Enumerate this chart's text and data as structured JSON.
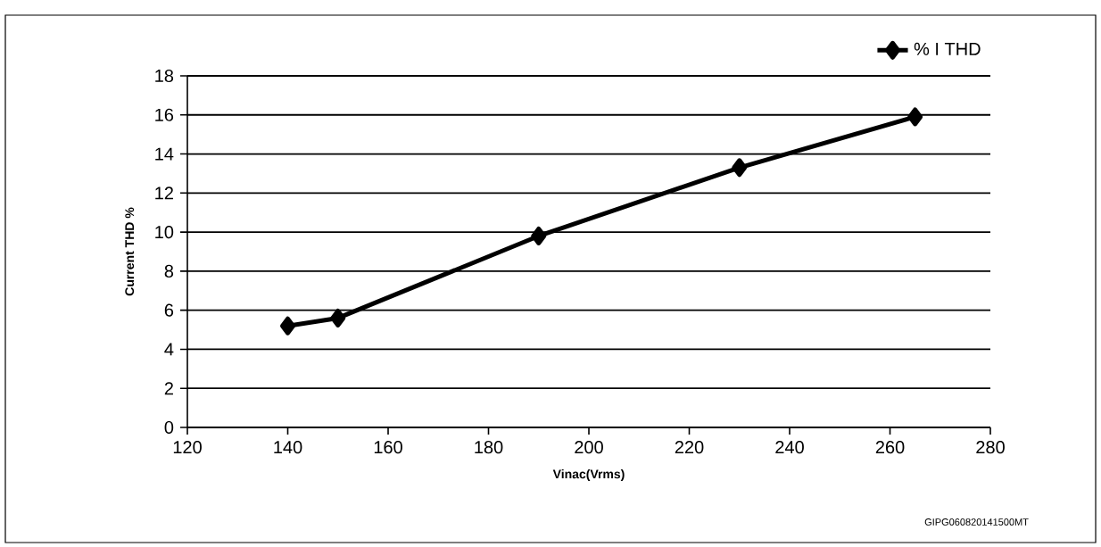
{
  "chart_data": {
    "type": "line",
    "xlabel": "Vinac(Vrms)",
    "ylabel": "Current THD %",
    "x": [
      140,
      150,
      190,
      230,
      265
    ],
    "series": [
      {
        "name": "% I THD",
        "color": "#000000",
        "values": [
          5.2,
          5.6,
          9.8,
          13.3,
          15.9
        ]
      }
    ],
    "xlim": [
      120,
      280
    ],
    "xticks": [
      120,
      140,
      160,
      180,
      200,
      220,
      240,
      260,
      280
    ],
    "ylim": [
      0,
      18
    ],
    "yticks": [
      0,
      2,
      4,
      6,
      8,
      10,
      12,
      14,
      16,
      18
    ],
    "grid": "y",
    "legend": "top right",
    "marker": "diamond",
    "line_style": "solid",
    "annotations": [
      "GIPG060820141500MT"
    ]
  }
}
